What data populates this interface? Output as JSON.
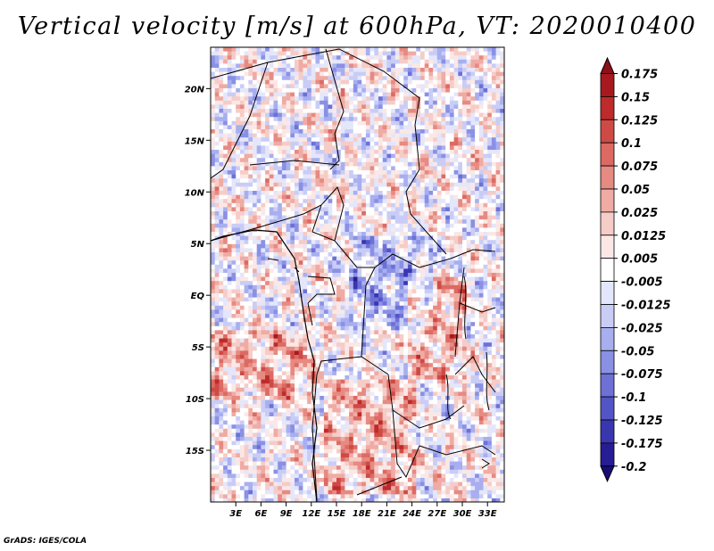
{
  "title": "Vertical velocity [m/s] at 600hPa, VT: 2020010400",
  "credit": "GrADS: IGES/COLA",
  "chart_data": {
    "type": "heatmap",
    "variable": "Vertical velocity",
    "units": "m/s",
    "level": "600hPa",
    "valid_time": "2020010400",
    "lon_range": [
      0,
      35
    ],
    "lat_range": [
      -20,
      24
    ],
    "x_ticks": [
      "3E",
      "6E",
      "9E",
      "12E",
      "15E",
      "18E",
      "21E",
      "24E",
      "27E",
      "30E",
      "33E"
    ],
    "x_tick_values": [
      3,
      6,
      9,
      12,
      15,
      18,
      21,
      24,
      27,
      30,
      33
    ],
    "y_ticks": [
      "20N",
      "15N",
      "10N",
      "5N",
      "EQ",
      "5S",
      "10S",
      "15S"
    ],
    "y_tick_values": [
      20,
      15,
      10,
      5,
      0,
      -5,
      -10,
      -15
    ],
    "colorbar": {
      "labels": [
        "0.175",
        "0.15",
        "0.125",
        "0.1",
        "0.075",
        "0.05",
        "0.025",
        "0.0125",
        "0.005",
        "-0.005",
        "-0.0125",
        "-0.025",
        "-0.05",
        "-0.075",
        "-0.1",
        "-0.125",
        "-0.175",
        "-0.2"
      ],
      "colors": [
        "#8e0f1a",
        "#a8181f",
        "#bd2b2b",
        "#cf4a45",
        "#dc6a63",
        "#e68a82",
        "#efaba4",
        "#f6ccc7",
        "#fbe8e6",
        "#ffffff",
        "#e4e6fb",
        "#c9cdf6",
        "#a8afef",
        "#8a90e4",
        "#6d71d6",
        "#5355c6",
        "#3a36b0",
        "#261c94",
        "#190c77"
      ],
      "extends": "both"
    },
    "features": [
      {
        "name": "positive band Gulf of Guinea to Angola coast",
        "region_lon": [
          0,
          12
        ],
        "region_lat": [
          -10,
          -3
        ],
        "sign": "positive"
      },
      {
        "name": "positive core eastern DRC",
        "region_lon": [
          23,
          30
        ],
        "region_lat": [
          -8,
          2
        ],
        "sign": "positive"
      },
      {
        "name": "positive cells Angola/Zambia",
        "region_lon": [
          13,
          24
        ],
        "region_lat": [
          -19,
          -8
        ],
        "sign": "positive"
      },
      {
        "name": "mixed streaks Sahara/Sahel",
        "region_lon": [
          4,
          33
        ],
        "region_lat": [
          8,
          24
        ],
        "sign": "mixed"
      },
      {
        "name": "negative area central Congo basin",
        "region_lon": [
          16,
          26
        ],
        "region_lat": [
          -3,
          6
        ],
        "sign": "negative"
      }
    ]
  }
}
